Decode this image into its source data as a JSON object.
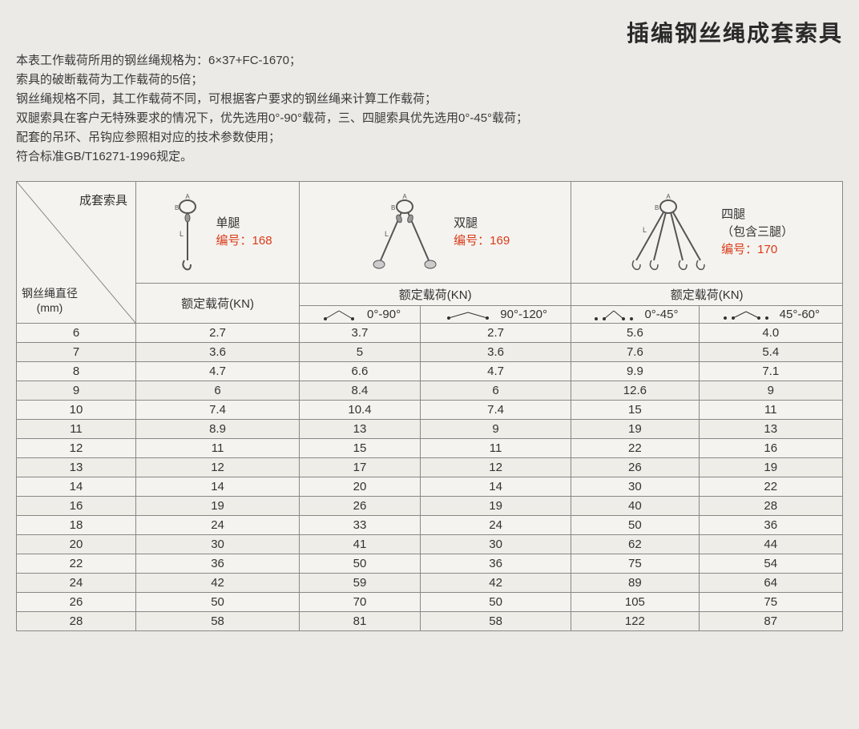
{
  "title": "插编钢丝绳成套索具",
  "notes": [
    "本表工作载荷所用的钢丝绳规格为：6×37+FC-1670；",
    "索具的破断载荷为工作载荷的5倍；",
    "钢丝绳规格不同，其工作载荷不同，可根据客户要求的钢丝绳来计算工作载荷；",
    "双腿索具在客户无特殊要求的情况下，优先选用0°-90°载荷，三、四腿索具优先选用0°-45°载荷；",
    "配套的吊环、吊钩应参照相对应的技术参数使用；",
    "符合标准GB/T16271-1996规定。"
  ],
  "header": {
    "corner_top": "成套索具",
    "corner_bottom_l1": "钢丝绳直径",
    "corner_bottom_l2": "(mm)",
    "single": {
      "name": "单腿",
      "code_label": "编号：",
      "code": "168",
      "load_label": "额定载荷(KN)"
    },
    "double": {
      "name": "双腿",
      "code_label": "编号：",
      "code": "169",
      "load_label": "额定载荷(KN)",
      "a1": "0°-90°",
      "a2": "90°-120°"
    },
    "quad": {
      "name": "四腿",
      "sub": "（包含三腿）",
      "code_label": "编号：",
      "code": "170",
      "load_label": "额定载荷(KN)",
      "a1": "0°-45°",
      "a2": "45°-60°"
    }
  },
  "rows": [
    {
      "d": "6",
      "v": [
        "2.7",
        "3.7",
        "2.7",
        "5.6",
        "4.0"
      ]
    },
    {
      "d": "7",
      "v": [
        "3.6",
        "5",
        "3.6",
        "7.6",
        "5.4"
      ]
    },
    {
      "d": "8",
      "v": [
        "4.7",
        "6.6",
        "4.7",
        "9.9",
        "7.1"
      ]
    },
    {
      "d": "9",
      "v": [
        "6",
        "8.4",
        "6",
        "12.6",
        "9"
      ]
    },
    {
      "d": "10",
      "v": [
        "7.4",
        "10.4",
        "7.4",
        "15",
        "11"
      ]
    },
    {
      "d": "11",
      "v": [
        "8.9",
        "13",
        "9",
        "19",
        "13"
      ]
    },
    {
      "d": "12",
      "v": [
        "11",
        "15",
        "11",
        "22",
        "16"
      ]
    },
    {
      "d": "13",
      "v": [
        "12",
        "17",
        "12",
        "26",
        "19"
      ]
    },
    {
      "d": "14",
      "v": [
        "14",
        "20",
        "14",
        "30",
        "22"
      ]
    },
    {
      "d": "16",
      "v": [
        "19",
        "26",
        "19",
        "40",
        "28"
      ]
    },
    {
      "d": "18",
      "v": [
        "24",
        "33",
        "24",
        "50",
        "36"
      ]
    },
    {
      "d": "20",
      "v": [
        "30",
        "41",
        "30",
        "62",
        "44"
      ]
    },
    {
      "d": "22",
      "v": [
        "36",
        "50",
        "36",
        "75",
        "54"
      ]
    },
    {
      "d": "24",
      "v": [
        "42",
        "59",
        "42",
        "89",
        "64"
      ]
    },
    {
      "d": "26",
      "v": [
        "50",
        "70",
        "50",
        "105",
        "75"
      ]
    },
    {
      "d": "28",
      "v": [
        "58",
        "81",
        "58",
        "122",
        "87"
      ]
    }
  ],
  "colors": {
    "code": "#d93a1a",
    "border": "#888",
    "bg": "#f5f3ef",
    "alt": "#efede7"
  }
}
